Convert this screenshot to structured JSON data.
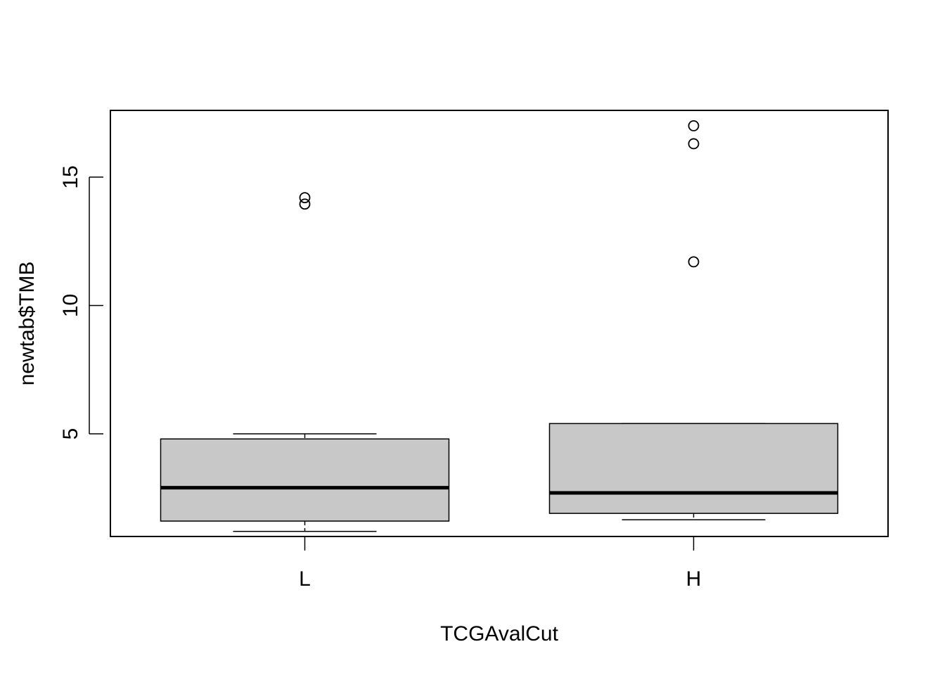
{
  "chart_data": {
    "type": "boxplot",
    "xlabel": "TCGAvalCut",
    "ylabel": "newtab$TMB",
    "categories": [
      "L",
      "H"
    ],
    "yticks": [
      5,
      10,
      15
    ],
    "ylim": [
      1.0,
      17.6
    ],
    "grid": false,
    "box_fill": "#c8c8c8",
    "boxes": [
      {
        "category": "L",
        "whisker_low": 1.2,
        "q1": 1.6,
        "median": 2.9,
        "q3": 4.8,
        "whisker_high": 5.0,
        "outliers": [
          14.2,
          13.95
        ]
      },
      {
        "category": "H",
        "whisker_low": 1.65,
        "q1": 1.9,
        "median": 2.7,
        "q3": 5.4,
        "whisker_high": 5.4,
        "outliers": [
          17.0,
          16.3,
          11.7
        ]
      }
    ]
  }
}
